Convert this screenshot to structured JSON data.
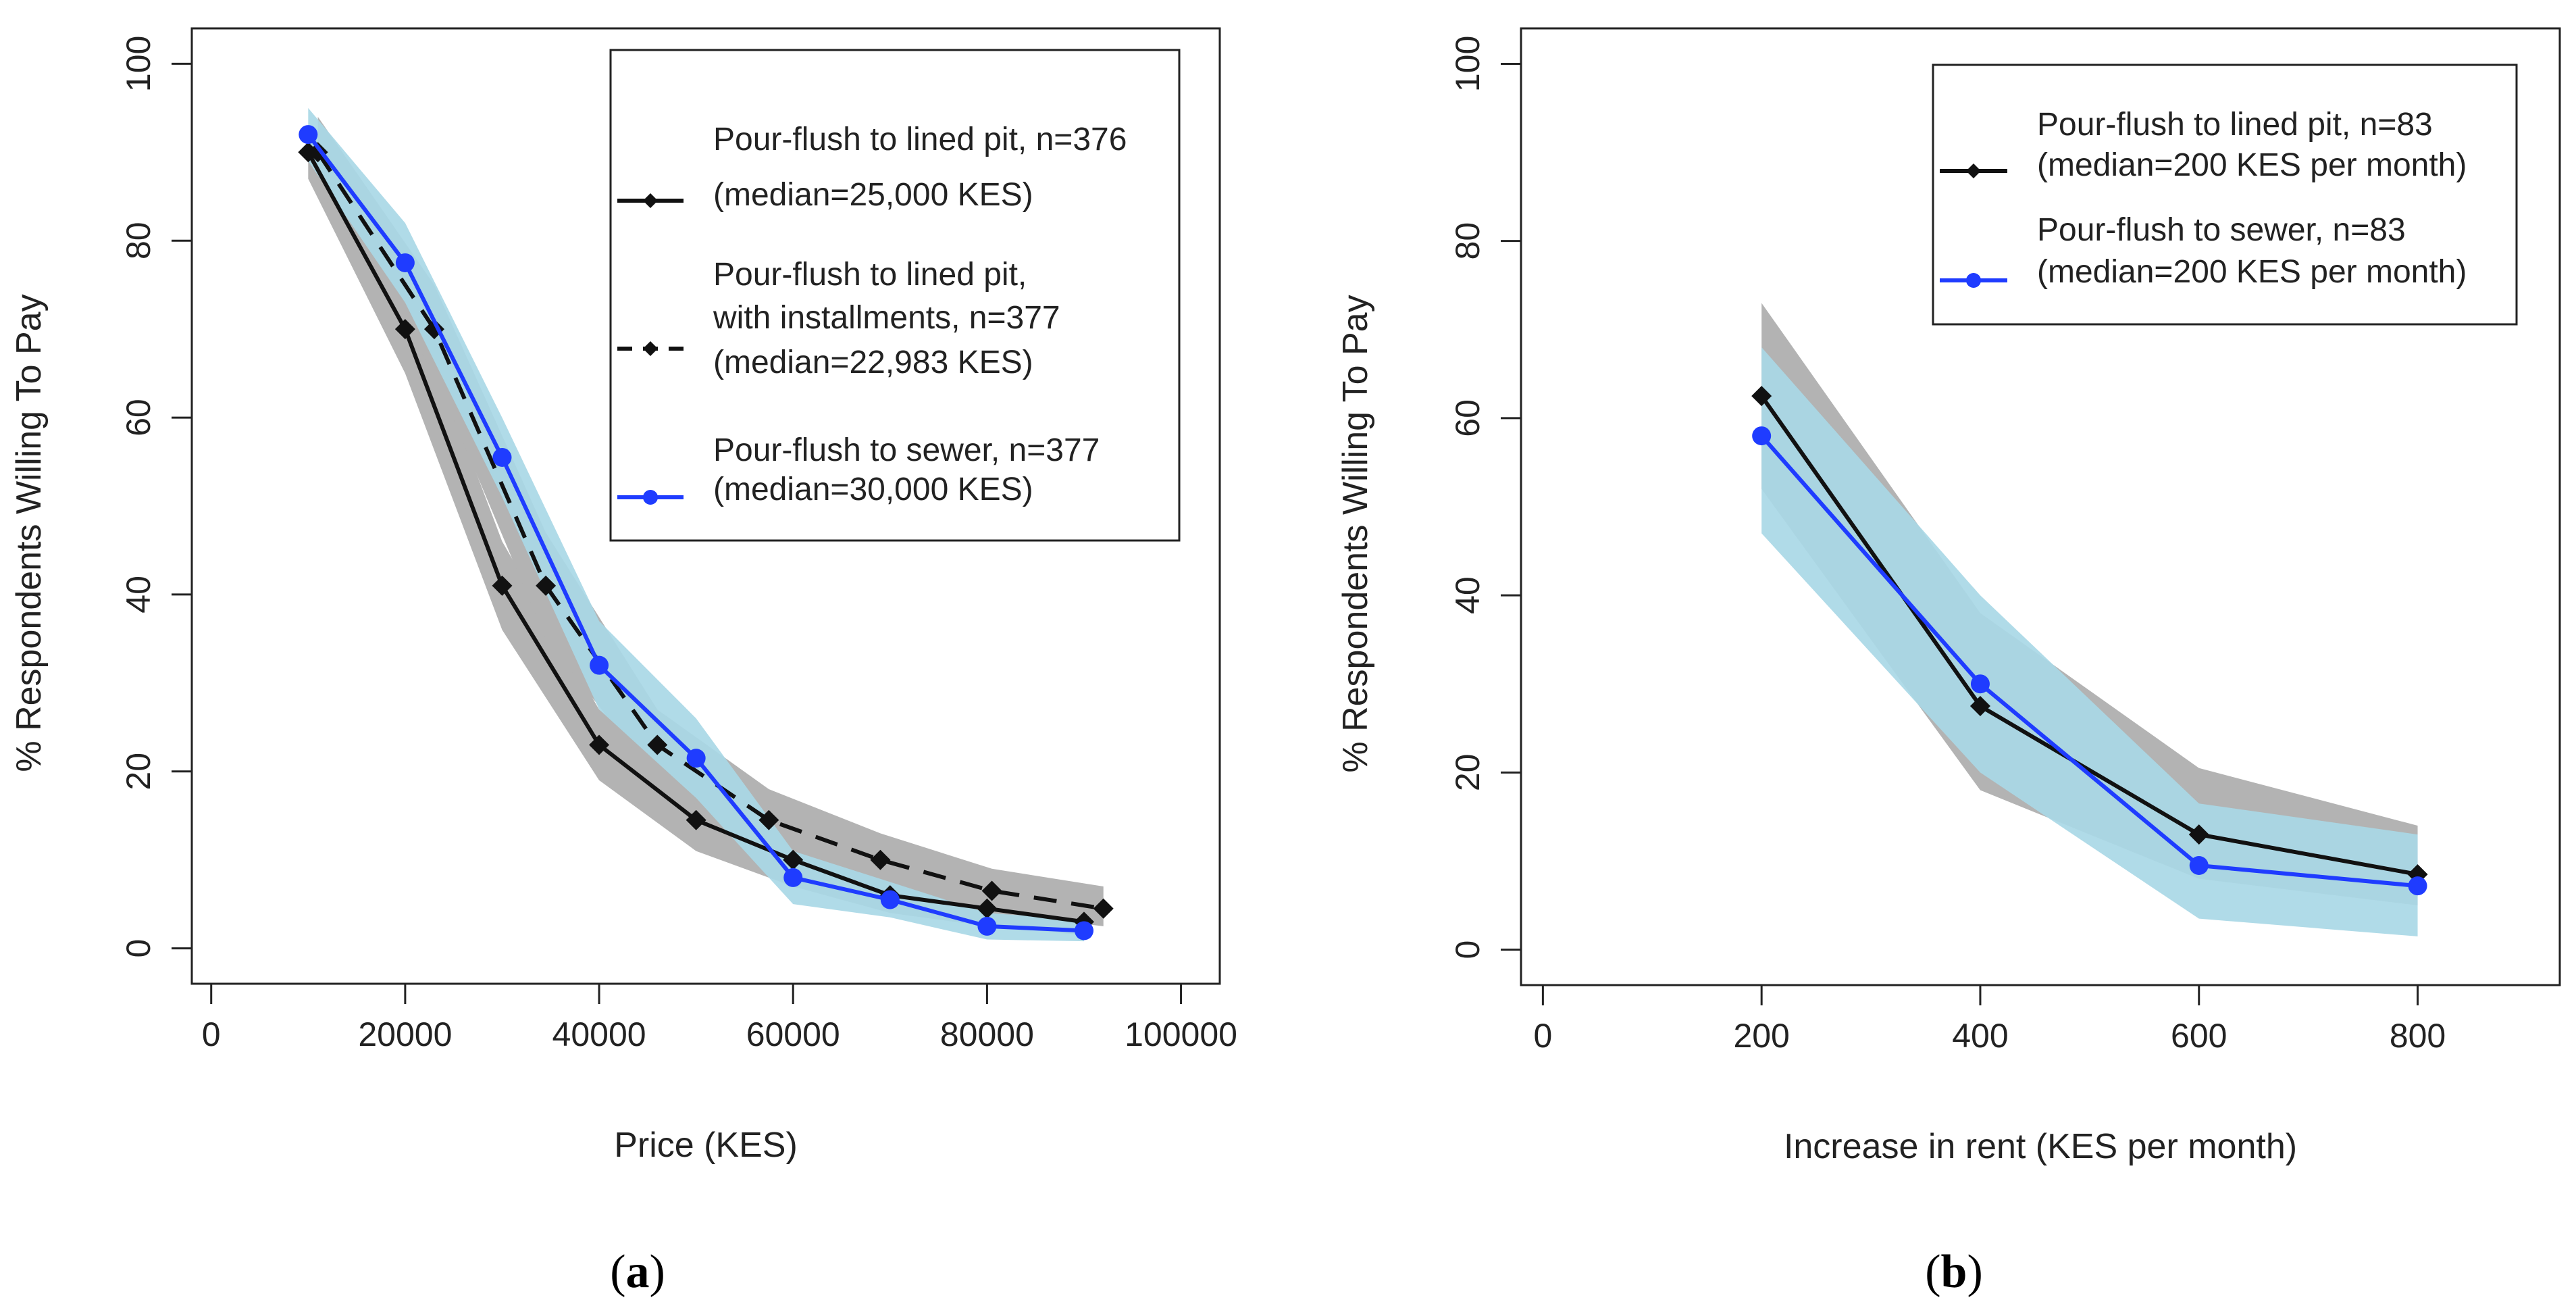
{
  "colors": {
    "black_series": "#111111",
    "blue_series": "#1f3cff",
    "grey_band": "#b3b3b3",
    "blue_band": "#a9d8e6",
    "axis": "#222222"
  },
  "chart_data": [
    {
      "type": "line",
      "caption_letter": "a",
      "xlabel": "Price (KES)",
      "ylabel": "% Respondents Willing To Pay",
      "xlim": [
        -2000,
        104000
      ],
      "ylim": [
        -4,
        104
      ],
      "xticks": [
        0,
        20000,
        40000,
        60000,
        80000,
        100000
      ],
      "yticks": [
        0,
        20,
        40,
        60,
        80,
        100
      ],
      "legend_position": "top-right",
      "series": [
        {
          "name": "Pour-flush to lined pit, n=376",
          "median": "(median=25,000 KES)",
          "color": "#111111",
          "style": "solid",
          "marker": "diamond",
          "x": [
            10000,
            20000,
            30000,
            40000,
            50000,
            60000,
            70000,
            80000,
            90000
          ],
          "y": [
            90,
            70,
            41,
            23,
            14.5,
            10,
            6,
            4.5,
            3
          ],
          "band_lower": [
            87,
            65,
            36,
            19,
            11,
            7,
            4,
            2.5,
            1.5
          ],
          "band_upper": [
            93,
            75,
            46,
            27,
            18.5,
            13,
            8.5,
            6.5,
            4.5
          ],
          "band_color": "#b3b3b3"
        },
        {
          "name": "Pour-flush to lined pit,",
          "name_line2": "with installments, n=377",
          "median": "(median=22,983 KES)",
          "color": "#111111",
          "style": "dashed",
          "marker": "diamond",
          "x": [
            11000,
            23000,
            34500,
            46000,
            57500,
            69000,
            80500,
            92000
          ],
          "y": [
            90,
            70,
            41,
            23,
            14.5,
            10,
            6.5,
            4.5
          ],
          "band_lower": [
            86,
            65,
            35,
            19,
            11,
            7,
            4,
            2.5
          ],
          "band_upper": [
            94,
            75,
            47,
            27,
            18,
            13,
            9,
            7
          ],
          "band_color": "#b3b3b3"
        },
        {
          "name": "Pour-flush to sewer, n=377",
          "median": "(median=30,000 KES)",
          "color": "#1f3cff",
          "style": "solid",
          "marker": "circle",
          "x": [
            10000,
            20000,
            30000,
            40000,
            50000,
            60000,
            70000,
            80000,
            90000
          ],
          "y": [
            92,
            77.5,
            55.5,
            32,
            21.5,
            8,
            5.5,
            2.5,
            2
          ],
          "band_lower": [
            89,
            73,
            51,
            27,
            17,
            5,
            3.5,
            1,
            0.8
          ],
          "band_upper": [
            95,
            82,
            60,
            37,
            26,
            11,
            7.5,
            4,
            3.2
          ],
          "band_color": "#a9d8e6"
        }
      ]
    },
    {
      "type": "line",
      "caption_letter": "b",
      "xlabel": "Increase in rent (KES per month)",
      "ylabel": "% Respondents Willing To Pay",
      "xlim": [
        -20,
        930
      ],
      "ylim": [
        -4,
        104
      ],
      "xticks": [
        0,
        200,
        400,
        600,
        800
      ],
      "yticks": [
        0,
        20,
        40,
        60,
        80,
        100
      ],
      "legend_position": "top-right",
      "series": [
        {
          "name": "Pour-flush to lined pit, n=83",
          "median": "(median=200 KES per month)",
          "color": "#111111",
          "style": "solid",
          "marker": "diamond",
          "x": [
            200,
            400,
            600,
            800
          ],
          "y": [
            62.5,
            27.5,
            13,
            8.5
          ],
          "band_lower": [
            52,
            18,
            8,
            5
          ],
          "band_upper": [
            73,
            38,
            20.5,
            14
          ],
          "band_color": "#b3b3b3"
        },
        {
          "name": "Pour-flush to sewer, n=83",
          "median": "(median=200 KES per month)",
          "color": "#1f3cff",
          "style": "solid",
          "marker": "circle",
          "x": [
            200,
            400,
            600,
            800
          ],
          "y": [
            58,
            30,
            9.5,
            7.2
          ],
          "band_lower": [
            47,
            20,
            3.5,
            1.5
          ],
          "band_upper": [
            68,
            40,
            16.5,
            13
          ],
          "band_color": "#a9d8e6"
        }
      ]
    }
  ]
}
